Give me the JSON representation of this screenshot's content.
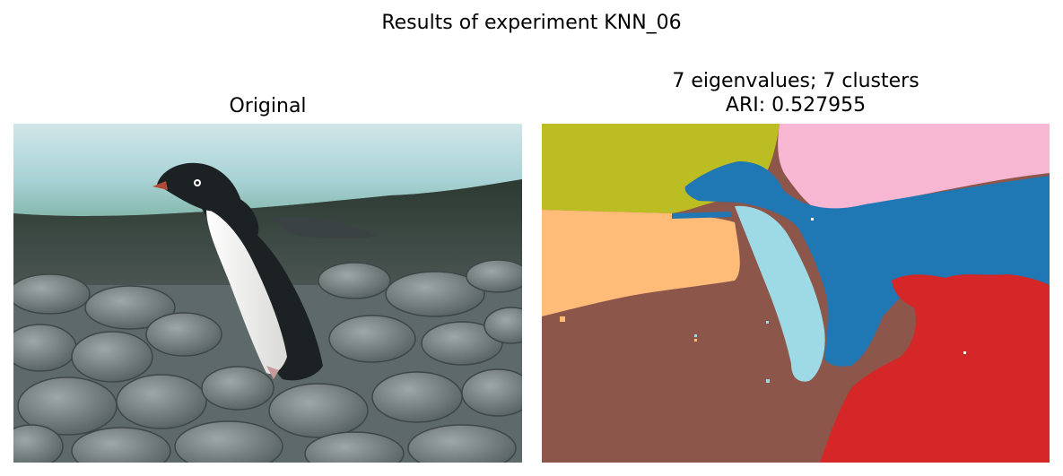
{
  "figure": {
    "suptitle": "Results of experiment KNN_06"
  },
  "panels": {
    "original": {
      "title": "Original"
    },
    "segmentation": {
      "title_line1": "7 eigenvalues; 7 clusters",
      "title_line2": "ARI: 0.527955",
      "cluster_colors": [
        "#bcbd22",
        "#f7b6d2",
        "#1f77b4",
        "#ffbb78",
        "#9edae5",
        "#8c564b",
        "#d62728"
      ]
    }
  }
}
